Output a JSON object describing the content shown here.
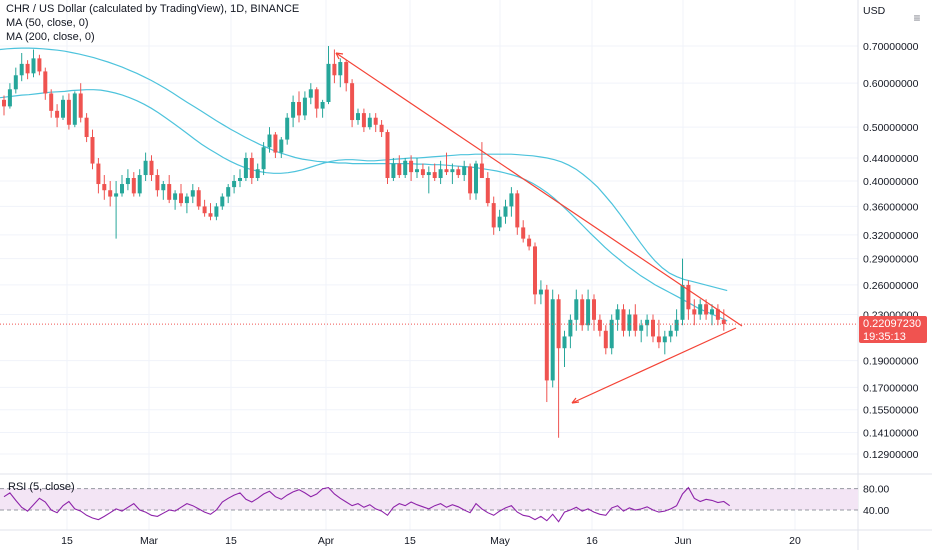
{
  "header": {
    "title": "CHR / US Dollar (calculated by TradingView), 1D, BINANCE",
    "ma50": "MA (50, close, 0)",
    "ma200": "MA (200, close, 0)",
    "currency": "USD",
    "rsi": "RSI (5, close)"
  },
  "price_tag": {
    "value": "0.22097230",
    "countdown": "19:35:13",
    "color": "#f05350"
  },
  "colors": {
    "up": "#26a69a",
    "down": "#ef5350",
    "ma": "#4dc3dc",
    "trendline": "#f44336",
    "rsi_line": "#8e24aa",
    "rsi_band": "#f3e5f5"
  },
  "chart_data": {
    "type": "candlestick",
    "title": "CHR / US Dollar (calculated by TradingView), 1D, BINANCE",
    "yscale": "log",
    "y_ticks": [
      "0.70000000",
      "0.60000000",
      "0.50000000",
      "0.44000000",
      "0.40000000",
      "0.36000000",
      "0.32000000",
      "0.29000000",
      "0.26000000",
      "0.23000000",
      "0.19000000",
      "0.17000000",
      "0.15500000",
      "0.14100000",
      "0.12900000"
    ],
    "x_ticks": [
      "15",
      "Mar",
      "15",
      "Apr",
      "15",
      "May",
      "16",
      "Jun",
      "20"
    ],
    "rsi_ticks": [
      "80.00",
      "40.00"
    ],
    "last_price": 0.2209723,
    "candles": [
      [
        0.56,
        0.57,
        0.525,
        0.545
      ],
      [
        0.545,
        0.6,
        0.54,
        0.585
      ],
      [
        0.585,
        0.64,
        0.575,
        0.62
      ],
      [
        0.62,
        0.68,
        0.605,
        0.65
      ],
      [
        0.65,
        0.66,
        0.61,
        0.625
      ],
      [
        0.625,
        0.69,
        0.615,
        0.665
      ],
      [
        0.665,
        0.675,
        0.62,
        0.63
      ],
      [
        0.63,
        0.64,
        0.56,
        0.575
      ],
      [
        0.575,
        0.585,
        0.52,
        0.535
      ],
      [
        0.535,
        0.55,
        0.5,
        0.52
      ],
      [
        0.52,
        0.57,
        0.515,
        0.56
      ],
      [
        0.56,
        0.575,
        0.495,
        0.505
      ],
      [
        0.505,
        0.58,
        0.5,
        0.575
      ],
      [
        0.575,
        0.6,
        0.51,
        0.52
      ],
      [
        0.52,
        0.53,
        0.47,
        0.48
      ],
      [
        0.48,
        0.495,
        0.42,
        0.43
      ],
      [
        0.43,
        0.44,
        0.38,
        0.395
      ],
      [
        0.395,
        0.41,
        0.37,
        0.385
      ],
      [
        0.385,
        0.4,
        0.36,
        0.375
      ],
      [
        0.375,
        0.4,
        0.315,
        0.38
      ],
      [
        0.38,
        0.41,
        0.375,
        0.395
      ],
      [
        0.395,
        0.42,
        0.385,
        0.405
      ],
      [
        0.405,
        0.415,
        0.375,
        0.38
      ],
      [
        0.38,
        0.42,
        0.375,
        0.41
      ],
      [
        0.41,
        0.45,
        0.4,
        0.435
      ],
      [
        0.435,
        0.445,
        0.4,
        0.41
      ],
      [
        0.41,
        0.42,
        0.375,
        0.385
      ],
      [
        0.385,
        0.4,
        0.37,
        0.395
      ],
      [
        0.395,
        0.41,
        0.365,
        0.37
      ],
      [
        0.37,
        0.385,
        0.355,
        0.38
      ],
      [
        0.38,
        0.395,
        0.36,
        0.365
      ],
      [
        0.365,
        0.38,
        0.35,
        0.375
      ],
      [
        0.375,
        0.395,
        0.365,
        0.385
      ],
      [
        0.385,
        0.39,
        0.355,
        0.36
      ],
      [
        0.36,
        0.37,
        0.345,
        0.35
      ],
      [
        0.35,
        0.365,
        0.34,
        0.345
      ],
      [
        0.345,
        0.365,
        0.34,
        0.36
      ],
      [
        0.36,
        0.38,
        0.355,
        0.375
      ],
      [
        0.375,
        0.395,
        0.365,
        0.39
      ],
      [
        0.39,
        0.41,
        0.38,
        0.4
      ],
      [
        0.4,
        0.42,
        0.39,
        0.405
      ],
      [
        0.405,
        0.45,
        0.4,
        0.44
      ],
      [
        0.44,
        0.45,
        0.395,
        0.405
      ],
      [
        0.405,
        0.43,
        0.4,
        0.42
      ],
      [
        0.42,
        0.47,
        0.41,
        0.46
      ],
      [
        0.46,
        0.5,
        0.45,
        0.485
      ],
      [
        0.485,
        0.49,
        0.44,
        0.45
      ],
      [
        0.45,
        0.48,
        0.44,
        0.475
      ],
      [
        0.475,
        0.53,
        0.465,
        0.52
      ],
      [
        0.52,
        0.57,
        0.5,
        0.555
      ],
      [
        0.555,
        0.58,
        0.51,
        0.525
      ],
      [
        0.525,
        0.58,
        0.515,
        0.565
      ],
      [
        0.565,
        0.6,
        0.55,
        0.585
      ],
      [
        0.585,
        0.59,
        0.52,
        0.54
      ],
      [
        0.54,
        0.56,
        0.52,
        0.555
      ],
      [
        0.555,
        0.7,
        0.55,
        0.65
      ],
      [
        0.65,
        0.69,
        0.6,
        0.62
      ],
      [
        0.62,
        0.665,
        0.59,
        0.655
      ],
      [
        0.655,
        0.66,
        0.58,
        0.6
      ],
      [
        0.6,
        0.61,
        0.5,
        0.515
      ],
      [
        0.515,
        0.54,
        0.505,
        0.53
      ],
      [
        0.53,
        0.54,
        0.49,
        0.5
      ],
      [
        0.5,
        0.53,
        0.495,
        0.52
      ],
      [
        0.52,
        0.53,
        0.49,
        0.505
      ],
      [
        0.505,
        0.515,
        0.48,
        0.49
      ],
      [
        0.49,
        0.495,
        0.395,
        0.405
      ],
      [
        0.405,
        0.44,
        0.4,
        0.43
      ],
      [
        0.43,
        0.445,
        0.405,
        0.41
      ],
      [
        0.41,
        0.44,
        0.405,
        0.435
      ],
      [
        0.435,
        0.445,
        0.4,
        0.415
      ],
      [
        0.415,
        0.44,
        0.405,
        0.42
      ],
      [
        0.42,
        0.43,
        0.405,
        0.41
      ],
      [
        0.41,
        0.425,
        0.38,
        0.415
      ],
      [
        0.415,
        0.43,
        0.4,
        0.405
      ],
      [
        0.405,
        0.435,
        0.395,
        0.42
      ],
      [
        0.42,
        0.45,
        0.41,
        0.415
      ],
      [
        0.415,
        0.43,
        0.395,
        0.42
      ],
      [
        0.42,
        0.425,
        0.405,
        0.41
      ],
      [
        0.41,
        0.435,
        0.4,
        0.425
      ],
      [
        0.425,
        0.43,
        0.37,
        0.38
      ],
      [
        0.38,
        0.435,
        0.37,
        0.43
      ],
      [
        0.43,
        0.47,
        0.405,
        0.405
      ],
      [
        0.405,
        0.415,
        0.36,
        0.365
      ],
      [
        0.365,
        0.375,
        0.32,
        0.33
      ],
      [
        0.33,
        0.355,
        0.325,
        0.345
      ],
      [
        0.345,
        0.37,
        0.335,
        0.36
      ],
      [
        0.36,
        0.39,
        0.345,
        0.38
      ],
      [
        0.38,
        0.385,
        0.32,
        0.33
      ],
      [
        0.33,
        0.34,
        0.31,
        0.315
      ],
      [
        0.315,
        0.32,
        0.3,
        0.305
      ],
      [
        0.305,
        0.31,
        0.24,
        0.25
      ],
      [
        0.25,
        0.265,
        0.24,
        0.255
      ],
      [
        0.255,
        0.26,
        0.16,
        0.175
      ],
      [
        0.175,
        0.255,
        0.17,
        0.245
      ],
      [
        0.245,
        0.25,
        0.138,
        0.2
      ],
      [
        0.2,
        0.215,
        0.185,
        0.21
      ],
      [
        0.21,
        0.23,
        0.2,
        0.225
      ],
      [
        0.225,
        0.255,
        0.215,
        0.245
      ],
      [
        0.245,
        0.25,
        0.215,
        0.22
      ],
      [
        0.22,
        0.255,
        0.215,
        0.245
      ],
      [
        0.245,
        0.25,
        0.215,
        0.225
      ],
      [
        0.225,
        0.23,
        0.21,
        0.215
      ],
      [
        0.215,
        0.22,
        0.195,
        0.2
      ],
      [
        0.2,
        0.23,
        0.195,
        0.225
      ],
      [
        0.225,
        0.24,
        0.215,
        0.235
      ],
      [
        0.235,
        0.24,
        0.21,
        0.215
      ],
      [
        0.215,
        0.235,
        0.21,
        0.23
      ],
      [
        0.23,
        0.24,
        0.21,
        0.215
      ],
      [
        0.215,
        0.225,
        0.205,
        0.22
      ],
      [
        0.22,
        0.23,
        0.21,
        0.225
      ],
      [
        0.225,
        0.23,
        0.205,
        0.21
      ],
      [
        0.21,
        0.225,
        0.2,
        0.205
      ],
      [
        0.205,
        0.215,
        0.195,
        0.21
      ],
      [
        0.21,
        0.22,
        0.205,
        0.215
      ],
      [
        0.215,
        0.235,
        0.21,
        0.225
      ],
      [
        0.225,
        0.29,
        0.22,
        0.26
      ],
      [
        0.26,
        0.265,
        0.225,
        0.235
      ],
      [
        0.235,
        0.245,
        0.22,
        0.23
      ],
      [
        0.23,
        0.245,
        0.225,
        0.24
      ],
      [
        0.24,
        0.245,
        0.225,
        0.23
      ],
      [
        0.23,
        0.24,
        0.22,
        0.235
      ],
      [
        0.235,
        0.24,
        0.22,
        0.225
      ],
      [
        0.225,
        0.235,
        0.215,
        0.221
      ]
    ],
    "ma50": [
      0.565,
      0.567,
      0.569,
      0.571,
      0.572,
      0.574,
      0.576,
      0.578,
      0.579,
      0.58,
      0.582,
      0.583,
      0.584,
      0.584,
      0.583,
      0.58,
      0.576,
      0.571,
      0.565,
      0.558,
      0.55,
      0.541,
      0.531,
      0.52,
      0.509,
      0.498,
      0.487,
      0.476,
      0.466,
      0.457,
      0.449,
      0.441,
      0.434,
      0.428,
      0.423,
      0.419,
      0.416,
      0.414,
      0.413,
      0.413,
      0.414,
      0.416,
      0.419,
      0.423,
      0.427,
      0.431,
      0.434,
      0.436,
      0.437,
      0.437,
      0.436,
      0.435,
      0.435,
      0.436,
      0.437,
      0.438,
      0.439,
      0.44,
      0.44,
      0.441,
      0.442,
      0.443,
      0.444,
      0.445,
      0.446,
      0.446,
      0.447,
      0.447,
      0.447,
      0.447,
      0.447,
      0.447,
      0.446,
      0.445,
      0.444,
      0.442,
      0.44,
      0.437,
      0.433,
      0.427,
      0.42,
      0.411,
      0.401,
      0.39,
      0.377,
      0.364,
      0.35,
      0.336,
      0.322,
      0.309,
      0.297,
      0.287,
      0.279,
      0.273,
      0.269,
      0.266,
      0.264,
      0.262,
      0.26,
      0.258,
      0.256,
      0.254
    ],
    "ma200": [
      0.69,
      0.692,
      0.693,
      0.694,
      0.694,
      0.693,
      0.692,
      0.69,
      0.688,
      0.685,
      0.681,
      0.677,
      0.672,
      0.667,
      0.661,
      0.655,
      0.648,
      0.641,
      0.633,
      0.625,
      0.616,
      0.607,
      0.597,
      0.587,
      0.576,
      0.565,
      0.554,
      0.544,
      0.534,
      0.524,
      0.514,
      0.505,
      0.496,
      0.488,
      0.48,
      0.473,
      0.466,
      0.46,
      0.454,
      0.449,
      0.445,
      0.441,
      0.438,
      0.436,
      0.434,
      0.433,
      0.432,
      0.431,
      0.431,
      0.43,
      0.43,
      0.43,
      0.43,
      0.43,
      0.43,
      0.43,
      0.43,
      0.43,
      0.429,
      0.429,
      0.428,
      0.428,
      0.427,
      0.426,
      0.425,
      0.424,
      0.423,
      0.421,
      0.419,
      0.417,
      0.414,
      0.411,
      0.407,
      0.402,
      0.396,
      0.389,
      0.381,
      0.372,
      0.362,
      0.352,
      0.342,
      0.332,
      0.322,
      0.313,
      0.304,
      0.296,
      0.289,
      0.282,
      0.276,
      0.27,
      0.265,
      0.26,
      0.256,
      0.252,
      0.248,
      0.244,
      0.24,
      0.236,
      0.233,
      0.23,
      0.227,
      0.224
    ],
    "rsi": [
      65,
      72,
      58,
      45,
      38,
      50,
      62,
      55,
      40,
      35,
      48,
      56,
      42,
      38,
      30,
      25,
      22,
      28,
      35,
      42,
      38,
      45,
      52,
      40,
      36,
      30,
      28,
      34,
      40,
      38,
      45,
      52,
      48,
      42,
      36,
      32,
      40,
      55,
      62,
      68,
      72,
      60,
      55,
      62,
      70,
      75,
      65,
      60,
      68,
      74,
      78,
      72,
      65,
      70,
      80,
      82,
      70,
      62,
      55,
      48,
      52,
      45,
      50,
      42,
      38,
      30,
      45,
      52,
      48,
      55,
      50,
      46,
      42,
      48,
      52,
      45,
      50,
      46,
      40,
      35,
      52,
      42,
      35,
      30,
      38,
      44,
      48,
      36,
      30,
      28,
      22,
      28,
      20,
      32,
      18,
      36,
      40,
      45,
      38,
      42,
      36,
      32,
      30,
      44,
      48,
      38,
      44,
      40,
      42,
      46,
      40,
      36,
      38,
      42,
      48,
      70,
      82,
      62,
      56,
      60,
      58,
      54,
      56,
      48
    ]
  }
}
